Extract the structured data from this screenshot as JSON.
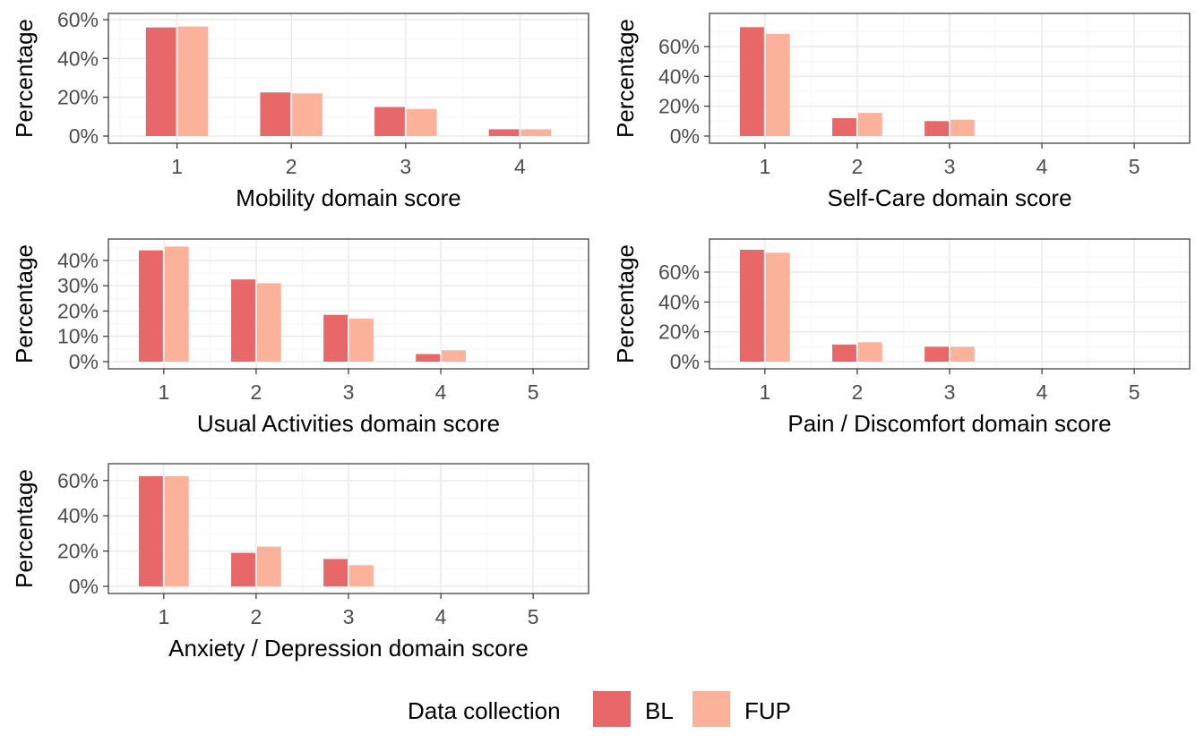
{
  "colors": {
    "BL": "#e8686a",
    "FUP": "#fcb19b",
    "panel_border": "#333333",
    "grid_major": "#ebebeb",
    "grid_minor": "#f5f5f5",
    "tick_text": "#4d4d4d"
  },
  "legend": {
    "title": "Data collection",
    "items": [
      {
        "key": "BL",
        "label": "BL"
      },
      {
        "key": "FUP",
        "label": "FUP"
      }
    ]
  },
  "chart_data": [
    {
      "type": "bar",
      "xlabel": "Mobility domain score",
      "ylabel": "Percentage",
      "categories": [
        "1",
        "2",
        "3",
        "4"
      ],
      "yticks": [
        "0%",
        "20%",
        "40%",
        "60%"
      ],
      "ylim": [
        0,
        60
      ],
      "series": [
        {
          "name": "BL",
          "values": [
            56,
            22.5,
            15,
            3.5
          ]
        },
        {
          "name": "FUP",
          "values": [
            56.5,
            22,
            14,
            3.5
          ]
        }
      ]
    },
    {
      "type": "bar",
      "xlabel": "Self-Care domain score",
      "ylabel": "Percentage",
      "categories": [
        "1",
        "2",
        "3",
        "4",
        "5"
      ],
      "yticks": [
        "0%",
        "20%",
        "40%",
        "60%"
      ],
      "ylim": [
        0,
        78
      ],
      "series": [
        {
          "name": "BL",
          "values": [
            73,
            12,
            10,
            0,
            0
          ]
        },
        {
          "name": "FUP",
          "values": [
            68.5,
            15.5,
            11,
            0,
            0
          ]
        }
      ]
    },
    {
      "type": "bar",
      "xlabel": "Usual Activities domain score",
      "ylabel": "Percentage",
      "categories": [
        "1",
        "2",
        "3",
        "4",
        "5"
      ],
      "yticks": [
        "0%",
        "10%",
        "20%",
        "30%",
        "40%"
      ],
      "ylim": [
        0,
        46
      ],
      "series": [
        {
          "name": "BL",
          "values": [
            44,
            32.5,
            18.5,
            3,
            0
          ]
        },
        {
          "name": "FUP",
          "values": [
            45.5,
            31,
            17,
            4.5,
            0
          ]
        }
      ]
    },
    {
      "type": "bar",
      "xlabel": "Pain / Discomfort domain score",
      "ylabel": "Percentage",
      "categories": [
        "1",
        "2",
        "3",
        "4",
        "5"
      ],
      "yticks": [
        "0%",
        "20%",
        "40%",
        "60%"
      ],
      "ylim": [
        0,
        78
      ],
      "series": [
        {
          "name": "BL",
          "values": [
            75,
            11.5,
            10,
            0,
            0
          ]
        },
        {
          "name": "FUP",
          "values": [
            73,
            13,
            10,
            0,
            0
          ]
        }
      ]
    },
    {
      "type": "bar",
      "xlabel": "Anxiety / Depression domain score",
      "ylabel": "Percentage",
      "categories": [
        "1",
        "2",
        "3",
        "4",
        "5"
      ],
      "yticks": [
        "0%",
        "20%",
        "40%",
        "60%"
      ],
      "ylim": [
        0,
        66
      ],
      "series": [
        {
          "name": "BL",
          "values": [
            62.5,
            19,
            15.5,
            0,
            0
          ]
        },
        {
          "name": "FUP",
          "values": [
            62.5,
            22.5,
            12,
            0,
            0
          ]
        }
      ]
    }
  ]
}
